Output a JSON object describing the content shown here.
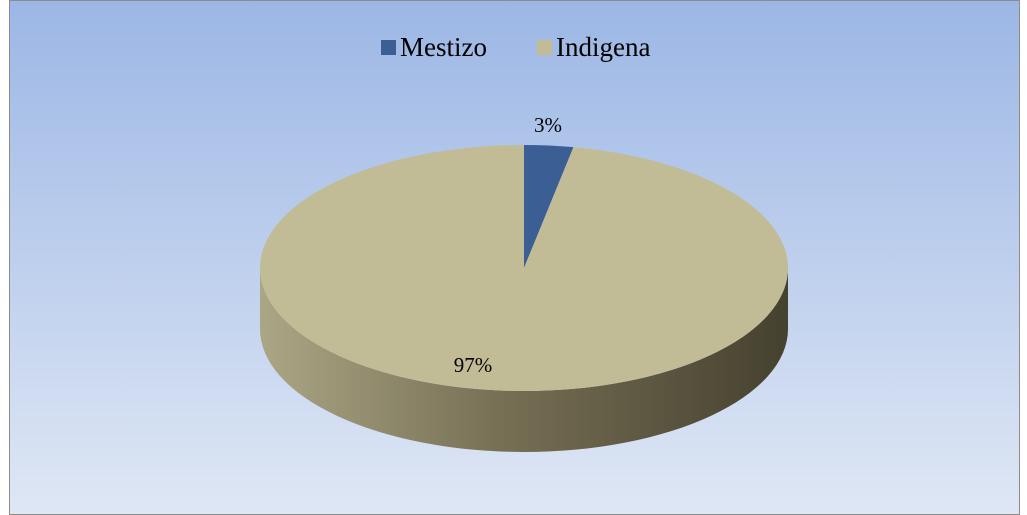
{
  "chart_data": {
    "type": "pie",
    "categories": [
      "Mestizo",
      "Indigena"
    ],
    "values": [
      3,
      97
    ],
    "value_labels": [
      "3%",
      "97%"
    ],
    "colors": [
      "#3b5f94",
      "#c1bc96"
    ],
    "legend": "top"
  }
}
